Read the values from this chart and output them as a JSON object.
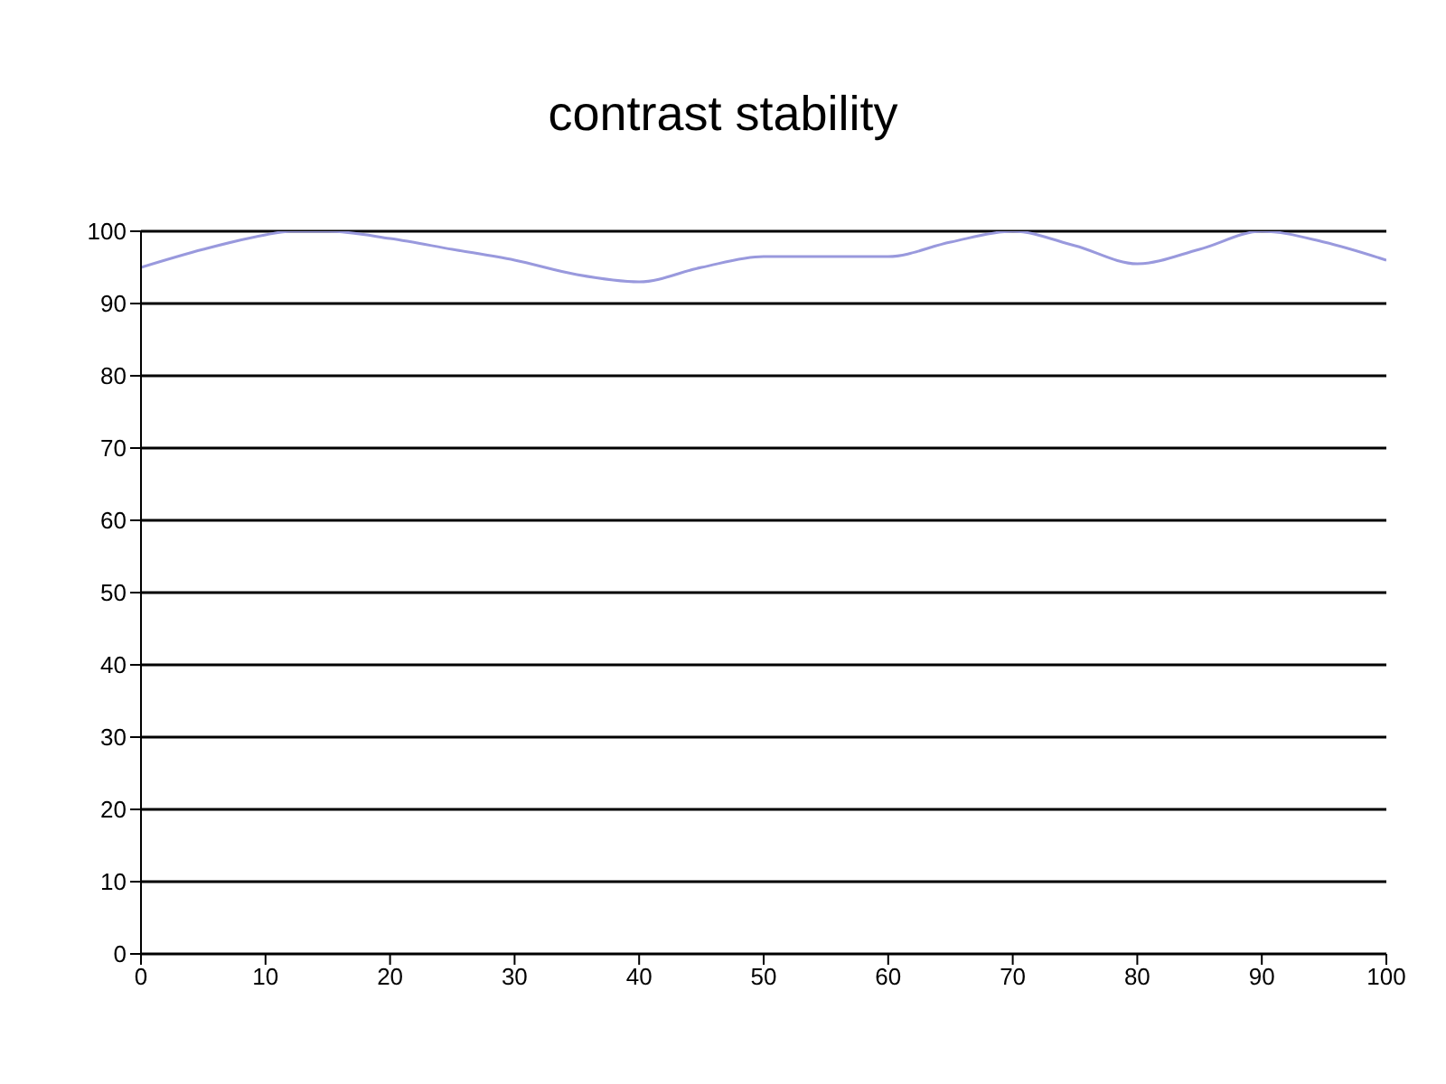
{
  "chart_data": {
    "type": "line",
    "title": "contrast stability",
    "x": [
      0,
      5,
      10,
      12,
      15,
      20,
      25,
      30,
      35,
      40,
      45,
      50,
      55,
      60,
      65,
      70,
      75,
      80,
      85,
      90,
      95,
      100
    ],
    "series": [
      {
        "color": "#9999dd",
        "values": [
          95,
          97.5,
          99.5,
          100,
          100,
          99,
          97.5,
          96,
          94,
          93,
          95,
          96.5,
          96.5,
          96.5,
          98.5,
          100,
          98,
          95.5,
          97.5,
          100,
          98.5,
          96
        ]
      }
    ],
    "xlim": [
      0,
      100
    ],
    "xticks": [
      0,
      10,
      20,
      30,
      40,
      50,
      60,
      70,
      80,
      90,
      100
    ],
    "ylim": [
      0,
      100
    ],
    "yticks": [
      0,
      10,
      20,
      30,
      40,
      50,
      60,
      70,
      80,
      90,
      100
    ],
    "grid": "y",
    "legend": false,
    "marker": "none",
    "line_style": "solid"
  }
}
